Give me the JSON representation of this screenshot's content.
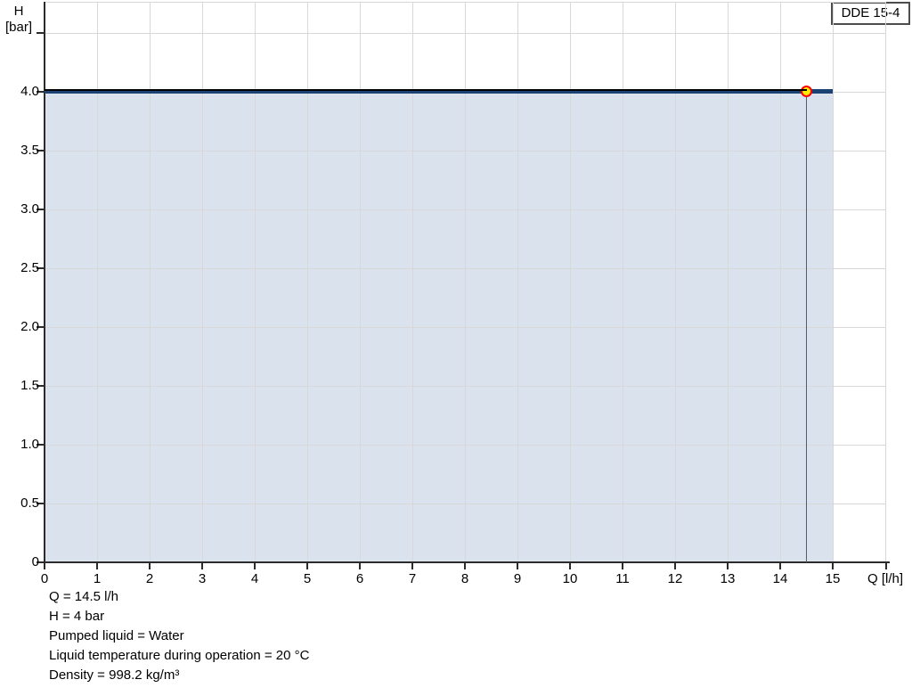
{
  "chart_data": {
    "type": "area",
    "title": "DDE 15-4",
    "xlabel": "Q [l/h]",
    "ylabel": "H [bar]",
    "ylabel_lines": [
      "H",
      "[bar]"
    ],
    "xlim": [
      0,
      15
    ],
    "ylim": [
      0,
      4.5
    ],
    "grid": true,
    "grid_color": "#d8d8d8",
    "axis_color": "#2b2b2b",
    "x_ticks": [
      {
        "v": 0,
        "label": "0"
      },
      {
        "v": 1,
        "label": "1"
      },
      {
        "v": 2,
        "label": "2"
      },
      {
        "v": 3,
        "label": "3"
      },
      {
        "v": 4,
        "label": "4"
      },
      {
        "v": 5,
        "label": "5"
      },
      {
        "v": 6,
        "label": "6"
      },
      {
        "v": 7,
        "label": "7"
      },
      {
        "v": 8,
        "label": "8"
      },
      {
        "v": 9,
        "label": "9"
      },
      {
        "v": 10,
        "label": "10"
      },
      {
        "v": 11,
        "label": "11"
      },
      {
        "v": 12,
        "label": "12"
      },
      {
        "v": 13,
        "label": "13"
      },
      {
        "v": 14,
        "label": "14"
      },
      {
        "v": 15,
        "label": "15"
      },
      {
        "v": 16.02,
        "label": ""
      }
    ],
    "y_ticks": [
      {
        "v": 4.5,
        "label": ""
      },
      {
        "v": 4,
        "label": "4.0"
      },
      {
        "v": 3.5,
        "label": "3.5"
      },
      {
        "v": 3,
        "label": "3.0"
      },
      {
        "v": 2.5,
        "label": "2.5"
      },
      {
        "v": 2,
        "label": "2.0"
      },
      {
        "v": 1.5,
        "label": "1.5"
      },
      {
        "v": 1,
        "label": "1.0"
      },
      {
        "v": 0.5,
        "label": "0.5"
      },
      {
        "v": 0,
        "label": "0"
      }
    ],
    "series": [
      {
        "name": "pump-curve",
        "type": "line",
        "x": [
          0,
          15
        ],
        "y": [
          4,
          4
        ],
        "color": "#1a4273",
        "fill": "#dae3ed",
        "fill_to_y": 0
      },
      {
        "name": "rated-flow-overlay",
        "type": "line",
        "x": [
          0,
          14.5
        ],
        "y": [
          4,
          4
        ],
        "color": "#000000"
      }
    ],
    "operating_point": {
      "q": 14.5,
      "h": 4,
      "marker_fill": "#ffeb00",
      "marker_ring": "#ff0000",
      "drop_line_color": "#4d5f70"
    }
  },
  "annotations": {
    "lines": [
      "Q = 14.5 l/h",
      "H = 4 bar",
      "Pumped liquid = Water",
      "Liquid temperature during operation = 20 °C",
      "Density = 998.2 kg/m³"
    ]
  }
}
